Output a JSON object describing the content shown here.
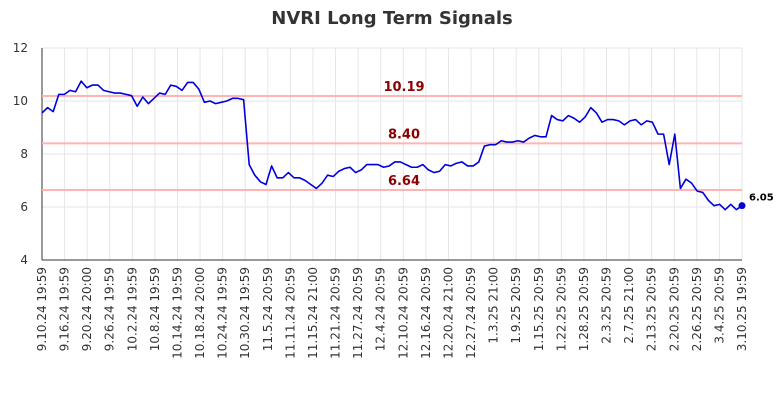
{
  "chart_data": {
    "type": "line",
    "title": "NVRI Long Term Signals",
    "xlabel": "",
    "ylabel": "",
    "ylim": [
      4,
      12
    ],
    "y_ticks": [
      4,
      6,
      8,
      10,
      12
    ],
    "grid": true,
    "legend": "none",
    "x_tick_labels": [
      "9.10.24 19:59",
      "9.16.24 19:59",
      "9.20.24 20:00",
      "9.26.24 19:59",
      "10.2.24 19:59",
      "10.8.24 19:59",
      "10.14.24 19:59",
      "10.18.24 20:00",
      "10.24.24 19:59",
      "10.30.24 19:59",
      "11.5.24 20:59",
      "11.11.24 20:59",
      "11.15.24 21:00",
      "11.21.24 20:59",
      "11.27.24 20:59",
      "12.4.24 20:59",
      "12.10.24 20:59",
      "12.16.24 20:59",
      "12.20.24 21:00",
      "12.27.24 20:59",
      "1.3.25 21:00",
      "1.9.25 20:59",
      "1.15.25 20:59",
      "1.22.25 20:59",
      "1.28.25 20:59",
      "2.3.25 20:59",
      "2.7.25 21:00",
      "2.13.25 20:59",
      "2.20.25 20:59",
      "2.26.25 20:59",
      "3.4.25 20:59",
      "3.10.25 19:59"
    ],
    "series": [
      {
        "values": [
          9.55,
          9.75,
          9.6,
          10.25,
          10.25,
          10.4,
          10.35,
          10.75,
          10.5,
          10.6,
          10.6,
          10.4,
          10.35,
          10.3,
          10.3,
          10.25,
          10.2,
          9.8,
          10.15,
          9.9,
          10.1,
          10.3,
          10.25,
          10.6,
          10.55,
          10.4,
          10.7,
          10.7,
          10.45,
          9.95,
          10.0,
          9.9,
          9.95,
          10.0,
          10.1,
          10.1,
          10.05,
          7.6,
          7.2,
          6.95,
          6.85,
          7.55,
          7.1,
          7.1,
          7.3,
          7.1,
          7.1,
          7.0,
          6.85,
          6.7,
          6.9,
          7.2,
          7.15,
          7.35,
          7.45,
          7.5,
          7.3,
          7.4,
          7.6,
          7.6,
          7.6,
          7.5,
          7.55,
          7.7,
          7.7,
          7.6,
          7.5,
          7.5,
          7.6,
          7.4,
          7.3,
          7.35,
          7.6,
          7.55,
          7.65,
          7.7,
          7.55,
          7.55,
          7.7,
          8.3,
          8.35,
          8.35,
          8.5,
          8.45,
          8.45,
          8.5,
          8.45,
          8.6,
          8.7,
          8.65,
          8.65,
          9.45,
          9.3,
          9.25,
          9.45,
          9.35,
          9.2,
          9.4,
          9.75,
          9.55,
          9.2,
          9.3,
          9.3,
          9.25,
          9.1,
          9.25,
          9.3,
          9.1,
          9.25,
          9.2,
          8.75,
          8.75,
          7.6,
          8.75,
          6.7,
          7.05,
          6.9,
          6.6,
          6.55,
          6.25,
          6.05,
          6.1,
          5.9,
          6.1,
          5.9,
          6.05
        ]
      }
    ],
    "signals": [
      {
        "value": 10.19,
        "label": "10.19",
        "color": "#8b0000"
      },
      {
        "value": 8.4,
        "label": "8.40",
        "color": "#8b0000"
      },
      {
        "value": 6.64,
        "label": "6.64",
        "color": "#8b0000"
      }
    ],
    "last_value_label": "6.05",
    "line_color": "#0000dd",
    "signal_line_color": "#ffb3b3"
  }
}
